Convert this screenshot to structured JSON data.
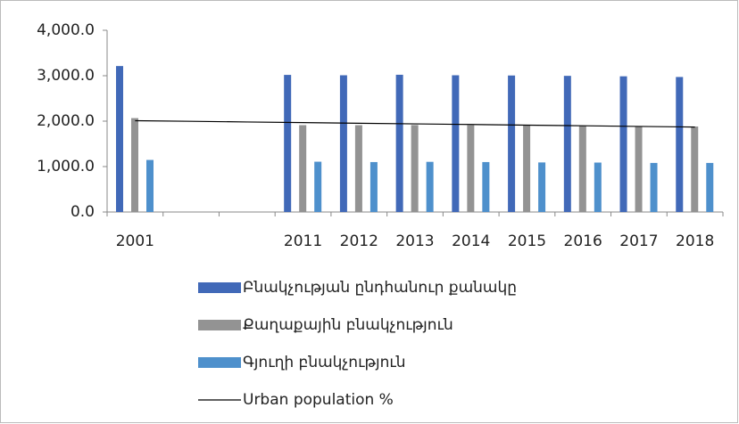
{
  "chart_data": {
    "type": "bar",
    "categories": [
      "2001",
      null,
      null,
      "2011",
      "2012",
      "2013",
      "2014",
      "2015",
      "2016",
      "2017",
      "2018"
    ],
    "series": [
      {
        "name": "Բնակչության ընդհանուր քանակը",
        "color": "#4169b8",
        "values": [
          3213,
          null,
          null,
          3018,
          3010,
          3021,
          3010,
          3005,
          2997,
          2987,
          2972
        ]
      },
      {
        "name": "Քաղաքային բնակչություն",
        "color": "#939393",
        "values": [
          2067,
          null,
          null,
          1912,
          1911,
          1914,
          1911,
          1908,
          1902,
          1892,
          1882
        ]
      },
      {
        "name": "Գյուղի բնակչություն",
        "color": "#4e90cc",
        "values": [
          1146,
          null,
          null,
          1107,
          1099,
          1104,
          1099,
          1091,
          1088,
          1080,
          1080
        ]
      },
      {
        "name": "Urban population %",
        "type": "line",
        "color": "#000000",
        "values": [
          2010,
          1996,
          1982,
          1968,
          1954,
          1940,
          1926,
          1912,
          1898,
          1884,
          1870
        ]
      }
    ],
    "ylim": [
      0,
      4000
    ],
    "yticks": [
      {
        "value": 0,
        "label": "0.0"
      },
      {
        "value": 1000,
        "label": "1,000.0"
      },
      {
        "value": 2000,
        "label": "2,000.0"
      },
      {
        "value": 3000,
        "label": "3,000.0"
      },
      {
        "value": 4000,
        "label": "4,000.0"
      }
    ],
    "legend": "bottom"
  }
}
